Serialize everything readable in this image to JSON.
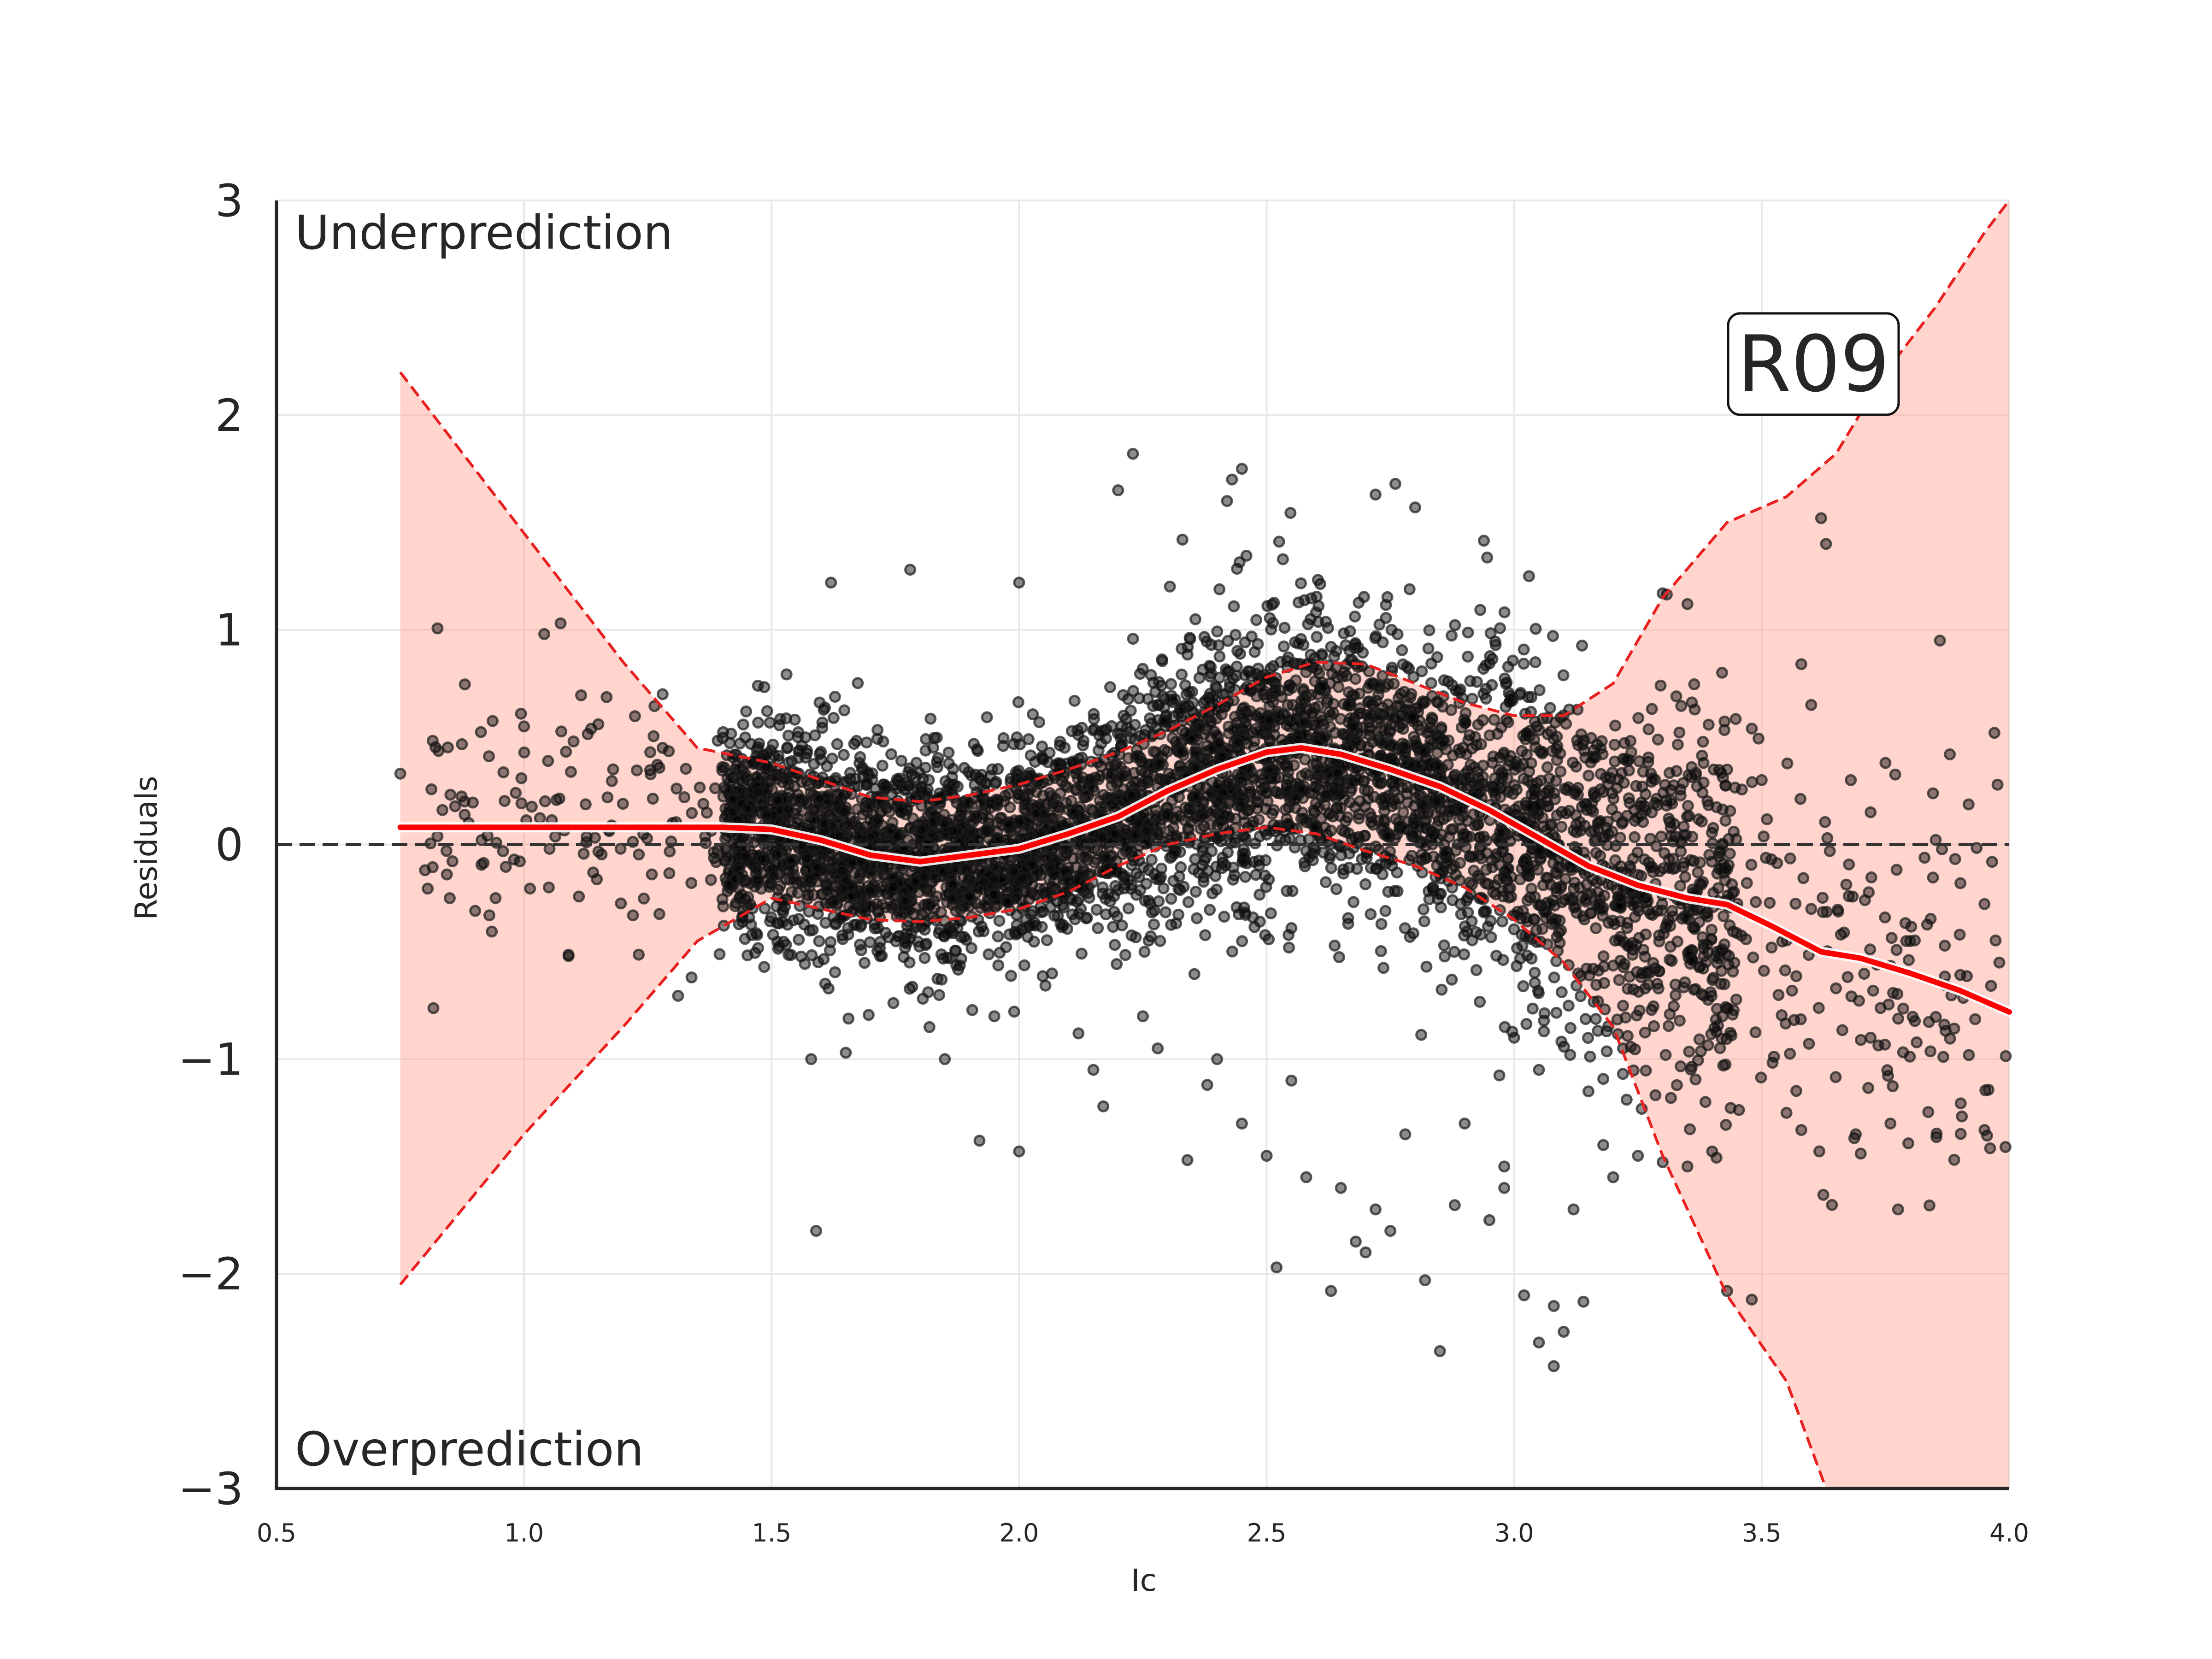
{
  "chart_data": {
    "type": "scatter",
    "xlabel": "Ic",
    "ylabel": "Residuals",
    "xlim": [
      0.5,
      4.0
    ],
    "ylim": [
      -3,
      3
    ],
    "x_ticks": [
      "0.5",
      "1.0",
      "1.5",
      "2.0",
      "2.5",
      "3.0",
      "3.5",
      "4.0"
    ],
    "y_ticks": [
      "3",
      "2",
      "1",
      "0",
      "−1",
      "−2",
      "−3"
    ],
    "grid": true,
    "zero_line": 0,
    "annotations": {
      "top": "Underprediction",
      "bottom": "Overprediction",
      "badge": "R09"
    },
    "trend": {
      "x": [
        0.75,
        1.0,
        1.4,
        1.5,
        1.6,
        1.7,
        1.8,
        1.9,
        2.0,
        2.1,
        2.2,
        2.3,
        2.4,
        2.5,
        2.57,
        2.65,
        2.75,
        2.85,
        2.95,
        3.05,
        3.15,
        3.25,
        3.35,
        3.43,
        3.52,
        3.62,
        3.7,
        3.8,
        3.9,
        4.0
      ],
      "y": [
        0.08,
        0.08,
        0.08,
        0.07,
        0.02,
        -0.05,
        -0.08,
        -0.05,
        -0.02,
        0.05,
        0.13,
        0.25,
        0.35,
        0.43,
        0.45,
        0.42,
        0.35,
        0.27,
        0.16,
        0.03,
        -0.1,
        -0.19,
        -0.25,
        -0.28,
        -0.38,
        -0.5,
        -0.53,
        -0.6,
        -0.68,
        -0.78
      ]
    },
    "band_upper": {
      "x": [
        0.75,
        1.0,
        1.2,
        1.35,
        1.5,
        1.6,
        1.7,
        1.8,
        1.9,
        2.0,
        2.1,
        2.2,
        2.3,
        2.4,
        2.5,
        2.6,
        2.7,
        2.8,
        2.9,
        3.0,
        3.1,
        3.2,
        3.3,
        3.43,
        3.55,
        3.65,
        3.75,
        3.85,
        3.95,
        4.0
      ],
      "y": [
        2.2,
        1.45,
        0.85,
        0.45,
        0.38,
        0.3,
        0.22,
        0.2,
        0.23,
        0.28,
        0.35,
        0.43,
        0.53,
        0.65,
        0.78,
        0.85,
        0.84,
        0.75,
        0.66,
        0.6,
        0.6,
        0.75,
        1.15,
        1.5,
        1.62,
        1.82,
        2.2,
        2.5,
        2.85,
        3.0
      ]
    },
    "band_lower": {
      "x": [
        0.75,
        1.0,
        1.2,
        1.35,
        1.5,
        1.6,
        1.7,
        1.8,
        1.9,
        2.0,
        2.1,
        2.2,
        2.3,
        2.4,
        2.5,
        2.6,
        2.7,
        2.8,
        2.9,
        3.0,
        3.1,
        3.2,
        3.3,
        3.43,
        3.55,
        3.63
      ],
      "y": [
        -2.05,
        -1.35,
        -0.85,
        -0.45,
        -0.25,
        -0.3,
        -0.35,
        -0.36,
        -0.34,
        -0.3,
        -0.22,
        -0.1,
        0.0,
        0.05,
        0.08,
        0.05,
        -0.03,
        -0.1,
        -0.2,
        -0.35,
        -0.55,
        -0.85,
        -1.45,
        -2.1,
        -2.5,
        -3.0
      ]
    },
    "points": {
      "count": 5200,
      "marker_color": "#000000",
      "outliers": [
        [
          0.75,
          0.33
        ],
        [
          0.8,
          -0.12
        ],
        [
          0.85,
          -0.25
        ],
        [
          0.88,
          0.2
        ],
        [
          0.93,
          -0.33
        ],
        [
          0.98,
          -0.07
        ],
        [
          1.0,
          0.55
        ],
        [
          1.05,
          -0.2
        ],
        [
          1.09,
          -0.52
        ],
        [
          1.1,
          0.48
        ],
        [
          1.15,
          0.56
        ],
        [
          1.18,
          0.35
        ],
        [
          1.22,
          -0.33
        ],
        [
          1.28,
          0.45
        ],
        [
          1.28,
          0.7
        ],
        [
          1.3,
          0.1
        ],
        [
          2.23,
          1.82
        ],
        [
          2.2,
          1.65
        ],
        [
          2.45,
          1.75
        ],
        [
          2.43,
          1.7
        ],
        [
          2.42,
          1.6
        ],
        [
          2.33,
          1.42
        ],
        [
          2.76,
          1.68
        ],
        [
          2.72,
          1.63
        ],
        [
          2.8,
          1.57
        ],
        [
          1.62,
          1.22
        ],
        [
          1.78,
          1.28
        ],
        [
          2.0,
          1.22
        ],
        [
          3.03,
          1.25
        ],
        [
          3.3,
          1.17
        ],
        [
          3.35,
          1.12
        ],
        [
          3.42,
          0.8
        ],
        [
          3.48,
          0.54
        ],
        [
          3.5,
          0.3
        ],
        [
          3.58,
          0.84
        ],
        [
          3.6,
          0.65
        ],
        [
          3.62,
          1.52
        ],
        [
          3.63,
          1.4
        ],
        [
          3.68,
          0.3
        ],
        [
          3.72,
          0.15
        ],
        [
          3.75,
          0.38
        ],
        [
          3.86,
          0.95
        ],
        [
          3.88,
          0.42
        ],
        [
          3.97,
          0.52
        ],
        [
          3.52,
          -0.48
        ],
        [
          3.6,
          -0.3
        ],
        [
          3.65,
          -0.67
        ],
        [
          3.72,
          -0.9
        ],
        [
          3.76,
          -1.3
        ],
        [
          3.8,
          -0.45
        ],
        [
          3.9,
          -0.42
        ],
        [
          3.95,
          -1.33
        ],
        [
          3.98,
          -0.55
        ],
        [
          3.55,
          -1.25
        ],
        [
          3.58,
          -1.33
        ],
        [
          3.69,
          -1.35
        ],
        [
          3.7,
          -1.44
        ],
        [
          1.59,
          -1.8
        ],
        [
          1.58,
          -1.0
        ],
        [
          1.65,
          -0.97
        ],
        [
          1.85,
          -1.0
        ],
        [
          1.92,
          -1.38
        ],
        [
          2.0,
          -1.43
        ],
        [
          2.15,
          -1.05
        ],
        [
          2.17,
          -1.22
        ],
        [
          2.25,
          -0.8
        ],
        [
          2.34,
          -1.47
        ],
        [
          2.38,
          -1.12
        ],
        [
          2.45,
          -1.3
        ],
        [
          2.5,
          -1.45
        ],
        [
          2.52,
          -1.97
        ],
        [
          2.55,
          -1.1
        ],
        [
          2.58,
          -1.55
        ],
        [
          2.63,
          -2.08
        ],
        [
          2.65,
          -1.6
        ],
        [
          2.68,
          -1.85
        ],
        [
          2.7,
          -1.9
        ],
        [
          2.72,
          -1.7
        ],
        [
          2.75,
          -1.8
        ],
        [
          2.78,
          -1.35
        ],
        [
          2.82,
          -2.03
        ],
        [
          2.85,
          -2.36
        ],
        [
          2.9,
          -1.3
        ],
        [
          2.95,
          -1.75
        ],
        [
          2.98,
          -1.5
        ],
        [
          3.02,
          -2.1
        ],
        [
          3.05,
          -2.32
        ],
        [
          3.08,
          -2.15
        ],
        [
          3.1,
          -2.27
        ],
        [
          3.12,
          -1.7
        ],
        [
          3.14,
          -2.13
        ],
        [
          3.18,
          -1.4
        ],
        [
          3.2,
          -1.55
        ],
        [
          3.25,
          -1.45
        ],
        [
          3.3,
          -1.48
        ],
        [
          3.35,
          -1.5
        ],
        [
          3.4,
          -1.43
        ],
        [
          3.43,
          -2.08
        ],
        [
          3.48,
          -2.12
        ],
        [
          3.08,
          -2.43
        ],
        [
          2.98,
          -1.6
        ],
        [
          2.88,
          -1.68
        ],
        [
          3.0,
          -0.9
        ],
        [
          3.05,
          -1.05
        ],
        [
          3.15,
          -1.15
        ],
        [
          3.22,
          -0.95
        ],
        [
          2.4,
          -1.0
        ],
        [
          2.28,
          -0.95
        ],
        [
          2.12,
          -0.88
        ],
        [
          1.95,
          -0.8
        ]
      ]
    }
  }
}
